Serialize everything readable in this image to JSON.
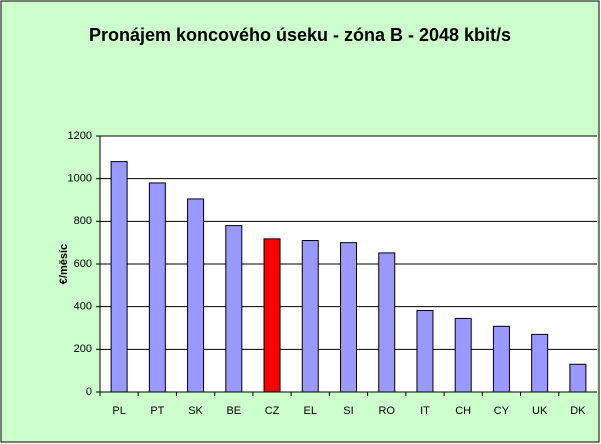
{
  "chart_data": {
    "type": "bar",
    "title": "Pronájem koncového úseku - zóna B - 2048 kbit/s",
    "y_label": "€/měsíc",
    "categories": [
      "PL",
      "PT",
      "SK",
      "BE",
      "CZ",
      "EL",
      "SI",
      "RO",
      "IT",
      "CH",
      "CY",
      "UK",
      "DK"
    ],
    "values": [
      1080,
      980,
      905,
      780,
      718,
      710,
      700,
      652,
      382,
      345,
      308,
      270,
      130
    ],
    "colors": [
      "#9999ff",
      "#9999ff",
      "#9999ff",
      "#9999ff",
      "#ff0000",
      "#9999ff",
      "#9999ff",
      "#9999ff",
      "#9999ff",
      "#9999ff",
      "#9999ff",
      "#9999ff",
      "#9999ff"
    ],
    "ylim": [
      0,
      1200
    ],
    "yticks": [
      0,
      200,
      400,
      600,
      800,
      1000,
      1200
    ],
    "grid": true
  }
}
